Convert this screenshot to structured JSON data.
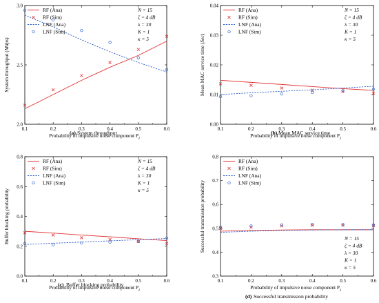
{
  "chart_data": [
    {
      "type": "line",
      "panel": "a",
      "caption_letter": "(a)",
      "caption_text": "System throughput",
      "title": "",
      "xlabel": "Probability of impulsive noise component P",
      "xlabel_sub": "I",
      "ylabel": "System throughput (",
      "ylabel_unit": "Mdps",
      "ylabel_close": ")",
      "xlim": [
        0.1,
        0.6
      ],
      "ylim": [
        2.0,
        3.0
      ],
      "xticks": [
        "0.1",
        "0.2",
        "0.3",
        "0.4",
        "0.5",
        "0.6"
      ],
      "yticks": [
        "2.0",
        "2.5",
        "3.0"
      ],
      "ytick_values": [
        2.0,
        2.5,
        3.0
      ],
      "x": [
        0.1,
        0.2,
        0.3,
        0.4,
        0.5,
        0.6
      ],
      "series": [
        {
          "name": "RF (Ana)",
          "style": "solid",
          "color": "#e03030",
          "values": [
            2.13,
            2.25,
            2.37,
            2.48,
            2.58,
            2.7
          ]
        },
        {
          "name": "RF (Sim)",
          "style": "x",
          "color": "#e03030",
          "values": [
            2.16,
            2.29,
            2.41,
            2.52,
            2.63,
            2.74
          ]
        },
        {
          "name": "LNF (Ana)",
          "style": "dashed",
          "color": "#3060c8",
          "values": [
            2.92,
            2.82,
            2.71,
            2.61,
            2.52,
            2.44
          ]
        },
        {
          "name": "LNF (Sim)",
          "style": "circle",
          "color": "#3060c8",
          "values": [
            2.96,
            2.88,
            2.79,
            2.69,
            2.56,
            2.46
          ]
        }
      ],
      "legend_position": "top-left",
      "annotations": [
        "N = 15",
        "ζ = 4 dB",
        "λ = 30",
        "K = 1",
        "κ = 5"
      ],
      "annotation_position": "top-right"
    },
    {
      "type": "line",
      "panel": "b",
      "caption_letter": "(b)",
      "caption_text": "Mean MAC service time",
      "title": "",
      "xlabel": "Probability of impulsive noise component P",
      "xlabel_sub": "I",
      "ylabel": "Mean MAC service time (",
      "ylabel_unit": "Sec",
      "ylabel_close": ")",
      "xlim": [
        0.1,
        0.6
      ],
      "ylim": [
        0.0,
        0.04
      ],
      "xticks": [
        "0.1",
        "0.2",
        "0.3",
        "0.4",
        "0.5",
        "0.6"
      ],
      "yticks": [
        "0.00",
        "0.01",
        "0.02",
        "0.03",
        "0.04"
      ],
      "ytick_values": [
        0.0,
        0.01,
        0.02,
        0.03,
        0.04
      ],
      "x": [
        0.1,
        0.2,
        0.3,
        0.4,
        0.5,
        0.6
      ],
      "series": [
        {
          "name": "RF (Ana)",
          "style": "solid",
          "color": "#e03030",
          "values": [
            0.0148,
            0.0141,
            0.0134,
            0.0127,
            0.012,
            0.0114
          ]
        },
        {
          "name": "RF (Sim)",
          "style": "x",
          "color": "#e03030",
          "values": [
            0.0136,
            0.0131,
            0.0122,
            0.0115,
            0.011,
            0.0105
          ]
        },
        {
          "name": "LNF (Ana)",
          "style": "dashed",
          "color": "#3060c8",
          "values": [
            0.01,
            0.0106,
            0.0111,
            0.0116,
            0.0122,
            0.0128
          ]
        },
        {
          "name": "LNF (Sim)",
          "style": "circle",
          "color": "#3060c8",
          "values": [
            0.0093,
            0.0096,
            0.0102,
            0.0107,
            0.0113,
            0.0118
          ]
        }
      ],
      "legend_position": "top-left",
      "annotations": [
        "N = 15",
        "ζ = 4 dB",
        "λ = 30",
        "K = 1",
        "κ = 5"
      ],
      "annotation_position": "top-right"
    },
    {
      "type": "line",
      "panel": "c",
      "caption_letter": "(c)",
      "caption_text": "Buffer blocking probability",
      "title": "",
      "xlabel": "Probability of impulsive noise component P",
      "xlabel_sub": "I",
      "ylabel": "Buffer blocking probability",
      "ylabel_unit": "",
      "ylabel_close": "",
      "xlim": [
        0.1,
        0.6
      ],
      "ylim": [
        0.0,
        0.8
      ],
      "xticks": [
        "0.1",
        "0.2",
        "0.3",
        "0.4",
        "0.5",
        "0.6"
      ],
      "yticks": [
        "0.0",
        "0.2",
        "0.4",
        "0.6",
        "0.8"
      ],
      "ytick_values": [
        0.0,
        0.2,
        0.4,
        0.6,
        0.8
      ],
      "x": [
        0.1,
        0.2,
        0.3,
        0.4,
        0.5,
        0.6
      ],
      "series": [
        {
          "name": "RF (Ana)",
          "style": "solid",
          "color": "#e03030",
          "values": [
            0.3,
            0.288,
            0.275,
            0.263,
            0.25,
            0.238
          ]
        },
        {
          "name": "RF (Sim)",
          "style": "x",
          "color": "#e03030",
          "values": [
            0.29,
            0.275,
            0.257,
            0.245,
            0.232,
            0.218
          ]
        },
        {
          "name": "LNF (Ana)",
          "style": "dashed",
          "color": "#3060c8",
          "values": [
            0.212,
            0.22,
            0.228,
            0.236,
            0.244,
            0.252
          ]
        },
        {
          "name": "LNF (Sim)",
          "style": "circle",
          "color": "#3060c8",
          "values": [
            0.218,
            0.21,
            0.222,
            0.228,
            0.232,
            0.255
          ]
        }
      ],
      "legend_position": "top-left",
      "annotations": [
        "N = 15",
        "ζ = 4 dB",
        "λ = 30",
        "K = 1",
        "κ = 5"
      ],
      "annotation_position": "top-right"
    },
    {
      "type": "line",
      "panel": "d",
      "caption_letter": "(d)",
      "caption_text": "Successful transmission probability",
      "title": "",
      "xlabel": "Probability of impulsive noise component P",
      "xlabel_sub": "I",
      "ylabel": "Successful transmission probability",
      "ylabel_unit": "",
      "ylabel_close": "",
      "xlim": [
        0.1,
        0.6
      ],
      "ylim": [
        0.3,
        0.8
      ],
      "xticks": [
        "0.1",
        "0.2",
        "0.3",
        "0.4",
        "0.5",
        "0.6"
      ],
      "yticks": [
        "0.3",
        "0.4",
        "0.5",
        "0.6",
        "0.7",
        "0.8"
      ],
      "ytick_values": [
        0.3,
        0.4,
        0.5,
        0.6,
        0.7,
        0.8
      ],
      "x": [
        0.1,
        0.2,
        0.3,
        0.4,
        0.5,
        0.6
      ],
      "series": [
        {
          "name": "RF (Ana)",
          "style": "solid",
          "color": "#e03030",
          "values": [
            0.488,
            0.491,
            0.493,
            0.494,
            0.494,
            0.494
          ]
        },
        {
          "name": "RF (Sim)",
          "style": "x",
          "color": "#e03030",
          "values": [
            0.5,
            0.505,
            0.51,
            0.513,
            0.513,
            0.511
          ]
        },
        {
          "name": "LNF (Ana)",
          "style": "dashed",
          "color": "#3060c8",
          "values": [
            0.483,
            0.488,
            0.491,
            0.493,
            0.494,
            0.494
          ]
        },
        {
          "name": "LNF (Sim)",
          "style": "circle",
          "color": "#3060c8",
          "values": [
            0.505,
            0.51,
            0.514,
            0.516,
            0.516,
            0.514
          ]
        }
      ],
      "legend_position": "top-left",
      "annotations": [
        "N = 15",
        "ζ = 4 dB",
        "λ = 30",
        "K = 1",
        "κ = 5"
      ],
      "annotation_position": "bottom-right"
    }
  ]
}
